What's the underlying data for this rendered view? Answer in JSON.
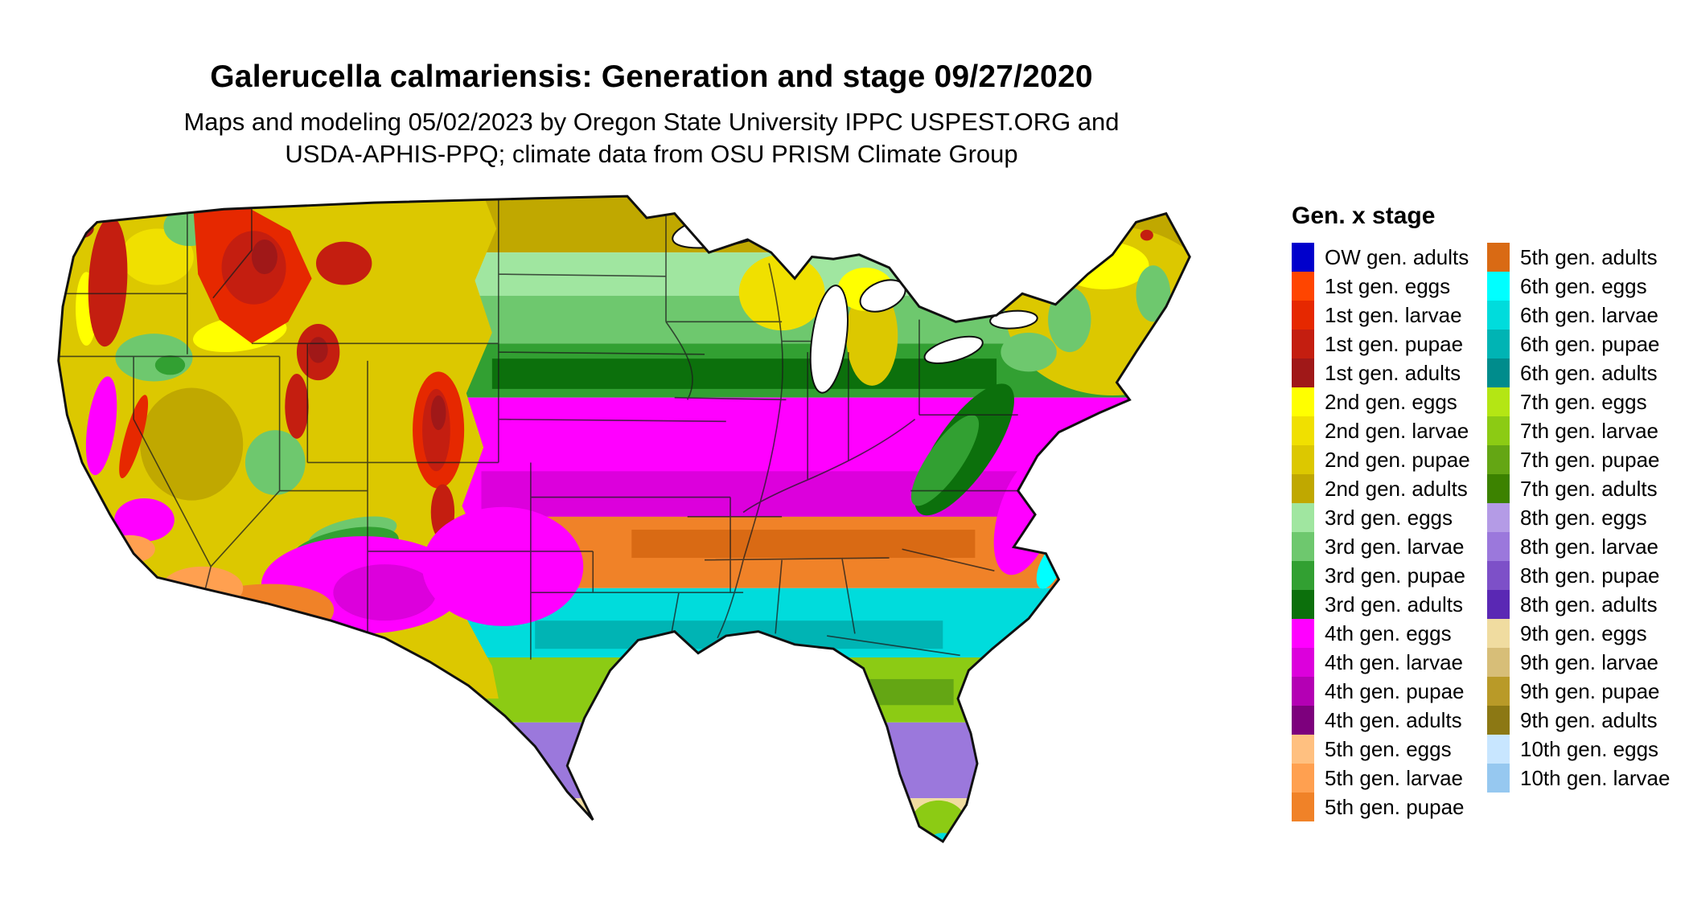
{
  "header": {
    "title": "Galerucella calmariensis: Generation and stage 09/27/2020",
    "subtitle_line1": "Maps and modeling 05/02/2023 by Oregon State University IPPC USPEST.ORG and",
    "subtitle_line2": "USDA-APHIS-PPQ; climate data from OSU PRISM Climate Group"
  },
  "map": {
    "palette": {
      "ow": "#0000CC",
      "g1e": "#FF4500",
      "g1l": "#E62800",
      "g1p": "#C41E10",
      "g1a": "#A01818",
      "g2e": "#FFFF00",
      "g2l": "#F0E000",
      "g2p": "#DCC800",
      "g2a": "#C0A800",
      "g3e": "#A0E6A0",
      "g3l": "#6EC86E",
      "g3p": "#32A032",
      "g3a": "#0C700C",
      "g4e": "#FF00FF",
      "g4l": "#DC00DC",
      "g4p": "#B400B4",
      "g4a": "#7D007D",
      "g5e": "#FFC080",
      "g5l": "#FFA050",
      "g5p": "#F08228",
      "g5a": "#D96A14",
      "g6e": "#00FFFF",
      "g6l": "#00DCDC",
      "g6p": "#00B4B4",
      "g6a": "#008C8C",
      "g7e": "#B4E614",
      "g7l": "#8CCB14",
      "g7p": "#64A614",
      "g7a": "#3C8200",
      "g8e": "#B49BE6",
      "g8l": "#9B78DC",
      "g8p": "#7D50C8",
      "g8a": "#5A28B4",
      "g9e": "#F0DCA0",
      "g9l": "#D7BE78",
      "g9p": "#B99A28",
      "g9a": "#8C7814",
      "g10e": "#C8E6FF",
      "g10l": "#96C8F0"
    },
    "bands_north_to_south": [
      "g2a",
      "g3e",
      "g3l",
      "g3p",
      "g3a",
      "g4e",
      "g5p",
      "g6l",
      "g7l",
      "g8l",
      "g9e"
    ]
  },
  "legend": {
    "title": "Gen. x stage",
    "columns": [
      {
        "items": [
          {
            "key": "ow",
            "label": "OW gen. adults"
          },
          {
            "key": "g1e",
            "label": "1st gen. eggs"
          },
          {
            "key": "g1l",
            "label": "1st gen. larvae"
          },
          {
            "key": "g1p",
            "label": "1st gen. pupae"
          },
          {
            "key": "g1a",
            "label": "1st gen. adults"
          },
          {
            "key": "g2e",
            "label": "2nd gen. eggs"
          },
          {
            "key": "g2l",
            "label": "2nd gen. larvae"
          },
          {
            "key": "g2p",
            "label": "2nd gen. pupae"
          },
          {
            "key": "g2a",
            "label": "2nd gen. adults"
          },
          {
            "key": "g3e",
            "label": "3rd gen. eggs"
          },
          {
            "key": "g3l",
            "label": "3rd gen. larvae"
          },
          {
            "key": "g3p",
            "label": "3rd gen. pupae"
          },
          {
            "key": "g3a",
            "label": "3rd gen. adults"
          },
          {
            "key": "g4e",
            "label": "4th gen. eggs"
          },
          {
            "key": "g4l",
            "label": "4th gen. larvae"
          },
          {
            "key": "g4p",
            "label": "4th gen. pupae"
          },
          {
            "key": "g4a",
            "label": "4th gen. adults"
          },
          {
            "key": "g5e",
            "label": "5th gen. eggs"
          },
          {
            "key": "g5l",
            "label": "5th gen. larvae"
          },
          {
            "key": "g5p",
            "label": "5th gen. pupae"
          }
        ]
      },
      {
        "items": [
          {
            "key": "g5a",
            "label": "5th gen. adults"
          },
          {
            "key": "g6e",
            "label": "6th gen. eggs"
          },
          {
            "key": "g6l",
            "label": "6th gen. larvae"
          },
          {
            "key": "g6p",
            "label": "6th gen. pupae"
          },
          {
            "key": "g6a",
            "label": "6th gen. adults"
          },
          {
            "key": "g7e",
            "label": "7th gen. eggs"
          },
          {
            "key": "g7l",
            "label": "7th gen. larvae"
          },
          {
            "key": "g7p",
            "label": "7th gen. pupae"
          },
          {
            "key": "g7a",
            "label": "7th gen. adults"
          },
          {
            "key": "g8e",
            "label": "8th gen. eggs"
          },
          {
            "key": "g8l",
            "label": "8th gen. larvae"
          },
          {
            "key": "g8p",
            "label": "8th gen. pupae"
          },
          {
            "key": "g8a",
            "label": "8th gen. adults"
          },
          {
            "key": "g9e",
            "label": "9th gen. eggs"
          },
          {
            "key": "g9l",
            "label": "9th gen. larvae"
          },
          {
            "key": "g9p",
            "label": "9th gen. pupae"
          },
          {
            "key": "g9a",
            "label": "9th gen. adults"
          },
          {
            "key": "g10e",
            "label": "10th gen. eggs"
          },
          {
            "key": "g10l",
            "label": "10th gen. larvae"
          }
        ]
      }
    ]
  }
}
